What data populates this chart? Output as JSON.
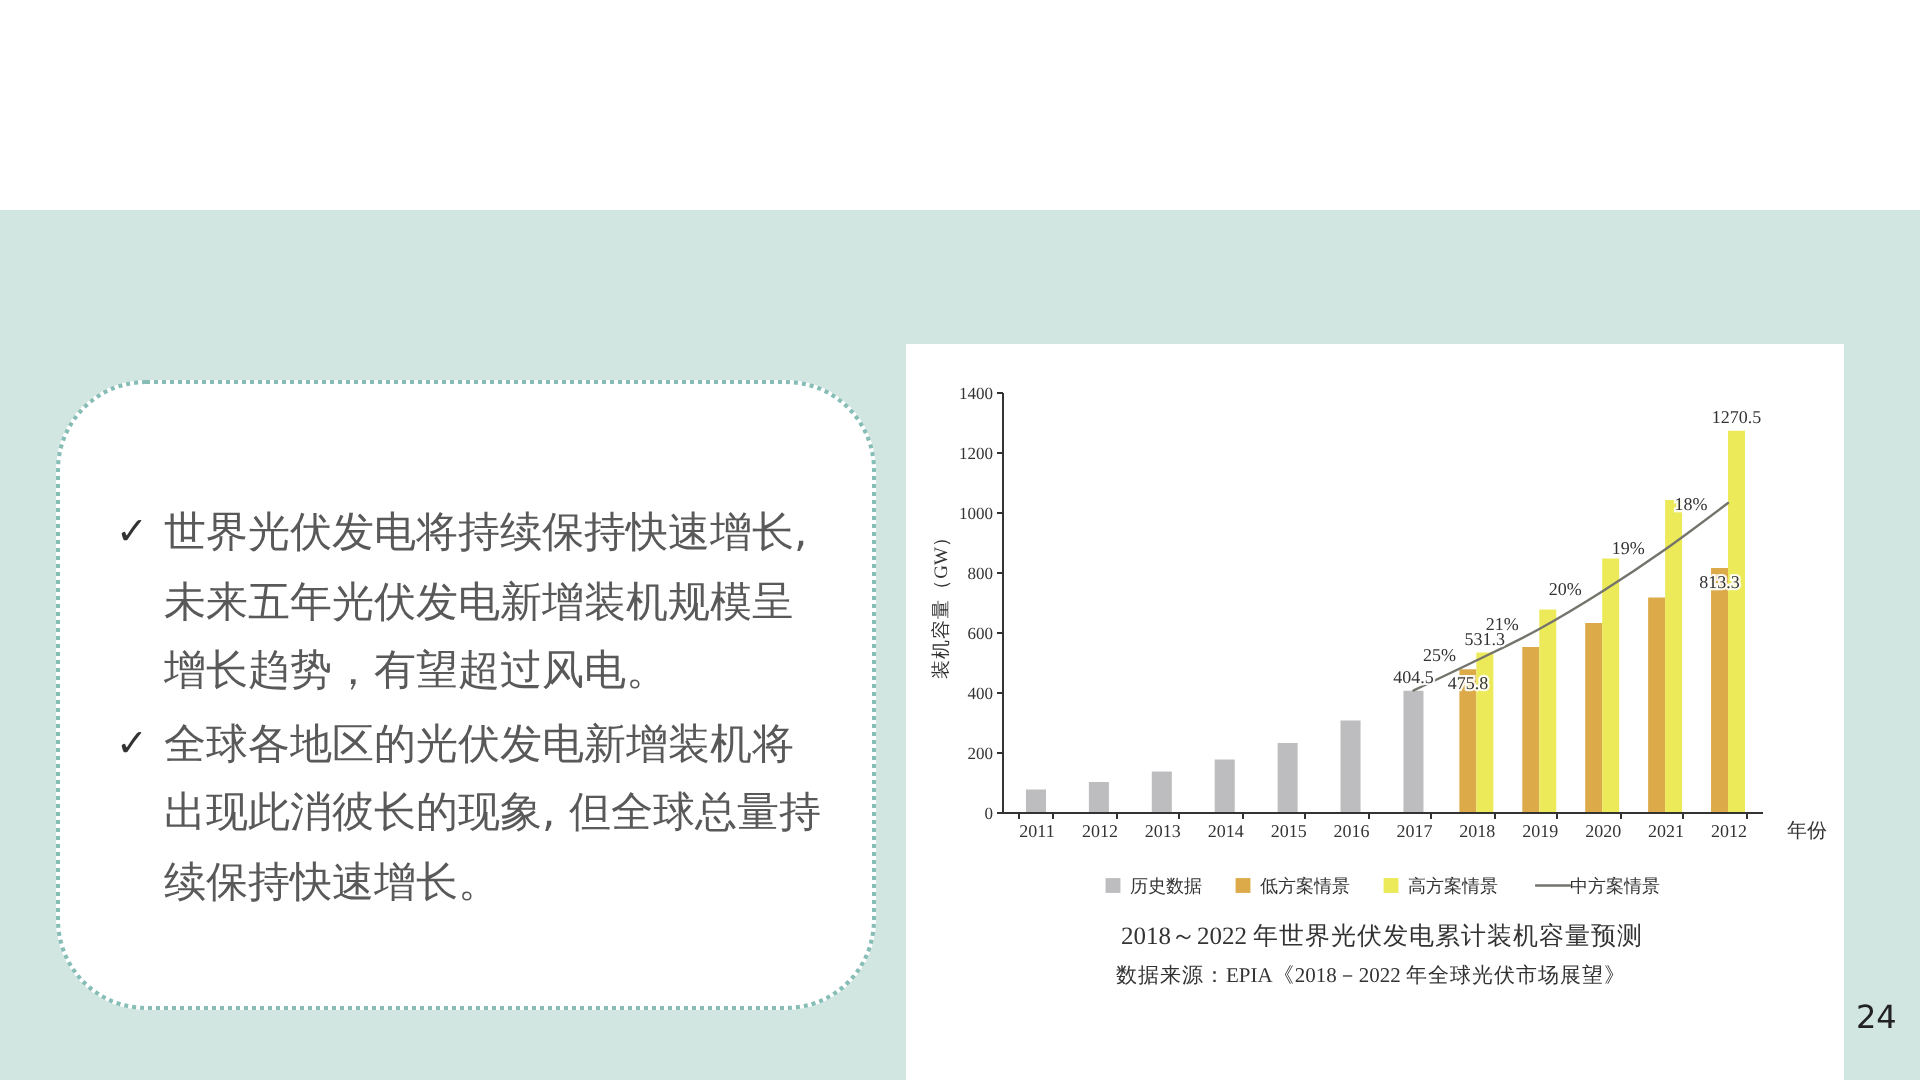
{
  "chart_data": {
    "type": "bar",
    "title": "2018～2022 年世界光伏发电累计装机容量预测",
    "xlabel": "年份",
    "ylabel": "装机容量（GW）",
    "categories": [
      "2011",
      "2012",
      "2013",
      "2014",
      "2015",
      "2016",
      "2017",
      "2018",
      "2019",
      "2020",
      "2021",
      "2012"
    ],
    "series": [
      {
        "name": "历史数据",
        "color": "#bdbdbf",
        "values": [
          75,
          100,
          135,
          175,
          230,
          305,
          404.5,
          null,
          null,
          null,
          null,
          null
        ],
        "value_labels": [
          null,
          null,
          null,
          null,
          null,
          null,
          "404.5",
          null,
          null,
          null,
          null,
          null
        ]
      },
      {
        "name": "低方案情景",
        "color": "#dcaa48",
        "values": [
          null,
          null,
          null,
          null,
          null,
          null,
          null,
          475.8,
          550,
          630,
          715,
          813.3
        ],
        "value_labels": [
          null,
          null,
          null,
          null,
          null,
          null,
          null,
          "475.8",
          null,
          null,
          null,
          "813.3"
        ]
      },
      {
        "name": "高方案情景",
        "color": "#ecea58",
        "values": [
          null,
          null,
          null,
          null,
          null,
          null,
          null,
          531.3,
          675,
          845,
          1040,
          1270.5
        ],
        "value_labels": [
          null,
          null,
          null,
          null,
          null,
          null,
          null,
          "531.3",
          null,
          null,
          null,
          "1270.5"
        ]
      },
      {
        "name": "中方案情景",
        "type": "line",
        "color": "#74746c",
        "values": [
          null,
          null,
          null,
          null,
          null,
          null,
          405,
          505,
          610,
          735,
          875,
          1030
        ]
      }
    ],
    "ylim": [
      0,
      1400
    ],
    "yticks": [
      0,
      200,
      400,
      600,
      800,
      1000,
      1200,
      1400
    ],
    "legend": "bottom",
    "annotations": [
      "✓ 世界光伏发电将持续保持快速增长,未来五年光伏发电新增装机规模呈增长趋势，有望超过风电。",
      "✓ 全球各地区的光伏发电新增装机将出现此消彼长的现象, 但全球总量持续保持快速增长。",
      "25%",
      "21%",
      "20%",
      "19%",
      "18%",
      "数据来源：EPIA《2018－2022 年全球光伏市场展望》",
      "24"
    ]
  }
}
